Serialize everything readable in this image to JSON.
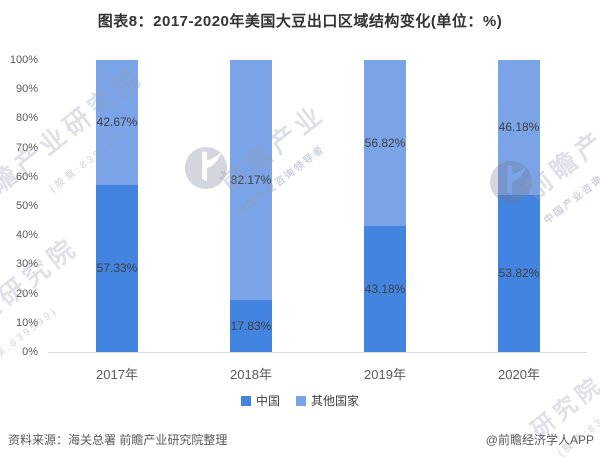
{
  "title": "图表8：2017-2020年美国大豆出口区域结构变化(单位：%)",
  "chart_data": {
    "type": "bar",
    "stacked": true,
    "title": "图表8：2017-2020年美国大豆出口区域结构变化(单位：%)",
    "unit": "%",
    "categories": [
      "2017年",
      "2018年",
      "2019年",
      "2020年"
    ],
    "series": [
      {
        "name": "中国",
        "color": "#4484E1",
        "values": [
          57.33,
          17.83,
          43.18,
          53.82
        ],
        "labels": [
          "57.33%",
          "17.83%",
          "43.18%",
          "53.82%"
        ]
      },
      {
        "name": "其他国家",
        "color": "#7AA4E7",
        "values": [
          42.67,
          82.17,
          56.82,
          46.18
        ],
        "labels": [
          "42.67%",
          "82.17%",
          "56.82%",
          "46.18%"
        ]
      }
    ],
    "y_axis": {
      "min": 0,
      "max": 100,
      "ticks": [
        "0%",
        "10%",
        "20%",
        "30%",
        "40%",
        "50%",
        "60%",
        "70%",
        "80%",
        "90%",
        "100%"
      ]
    },
    "grid": false,
    "legend_position": "bottom"
  },
  "colors": {
    "china_blue": "#4484E1",
    "others_blue": "#7AA4E7",
    "axis_text": "#595959",
    "value_label_text": "#3F3F3F",
    "title_text": "#333333",
    "baseline": "#D9D9D9"
  },
  "footer": {
    "source": "资料来源：海关总署 前瞻产业研究院整理",
    "credit": "@前瞻经济学人APP"
  },
  "watermarks": {
    "brand": "前瞻产业研究院",
    "stock": "(股票:839599)",
    "brand_short": "前瞻产业",
    "tagline": "中国产业咨询领导者",
    "fragment": "研究院"
  }
}
